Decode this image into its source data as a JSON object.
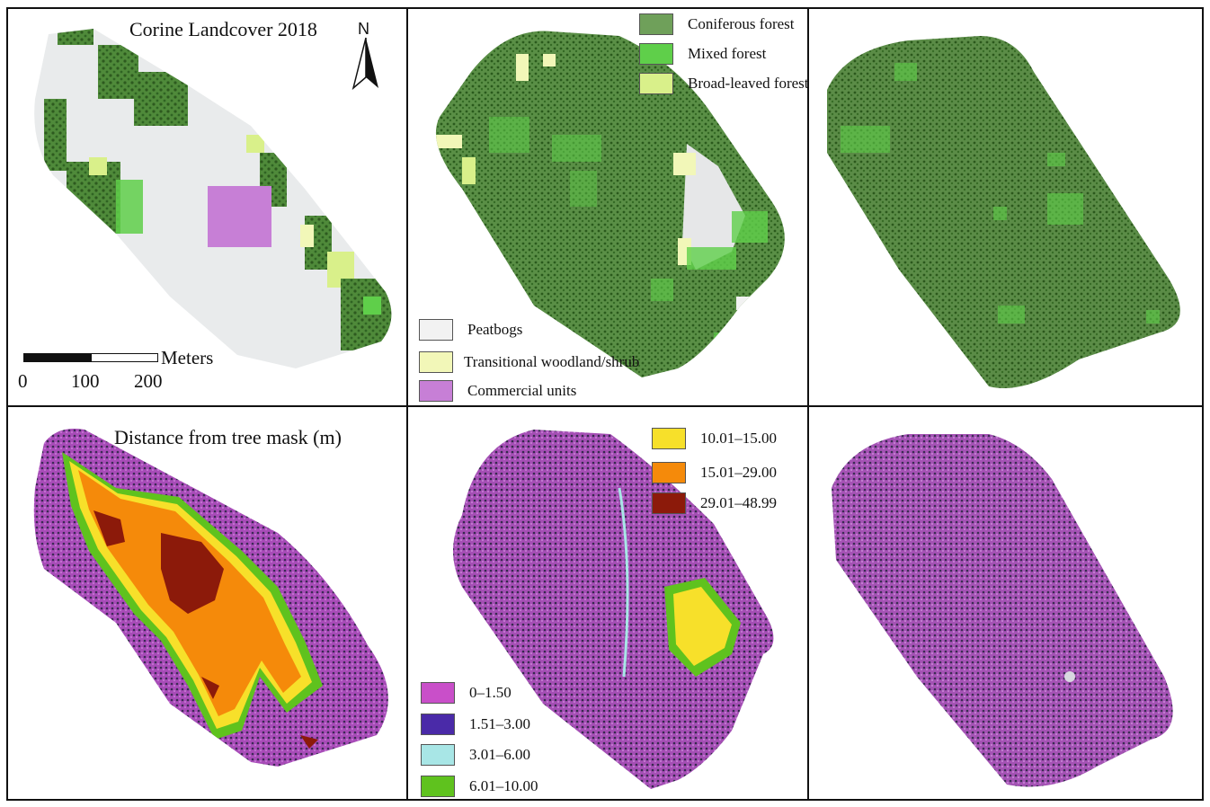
{
  "panels": {
    "top_left": {
      "title": "Corine Landcover 2018",
      "north_label": "N",
      "scale": {
        "unit": "Meters",
        "ticks": [
          "0",
          "100",
          "200"
        ]
      }
    },
    "top_middle": {
      "legend_forest": [
        {
          "label": "Coniferous forest",
          "color": "#6fa05a"
        },
        {
          "label": "Mixed forest",
          "color": "#5fcf4a"
        },
        {
          "label": "Broad-leaved forest",
          "color": "#d9f08a"
        }
      ],
      "legend_other": [
        {
          "label": "Peatbogs",
          "color": "#f2f2f2"
        },
        {
          "label": "Transitional woodland/shrub",
          "color": "#f2f7b8"
        },
        {
          "label": "Commercial units",
          "color": "#c77fd6"
        }
      ]
    },
    "bottom_left": {
      "title": "Distance from tree mask (m)"
    },
    "bottom_middle": {
      "legend_high": [
        {
          "label": "10.01–15.00",
          "color": "#f7e02a"
        },
        {
          "label": "15.01–29.00",
          "color": "#f58a0a"
        },
        {
          "label": "29.01–48.99",
          "color": "#8c1a0a"
        }
      ],
      "legend_low": [
        {
          "label": "0–1.50",
          "color": "#c94fc9"
        },
        {
          "label": "1.51–3.00",
          "color": "#4a2aa8"
        },
        {
          "label": "3.01–6.00",
          "color": "#a8e6e6"
        },
        {
          "label": "6.01–10.00",
          "color": "#5fc21e"
        }
      ]
    }
  }
}
